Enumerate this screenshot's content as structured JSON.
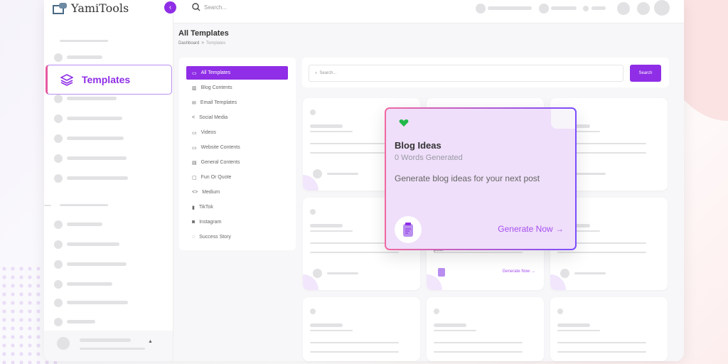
{
  "app": {
    "logo": "YamiTools",
    "search_placeholder": "Search..."
  },
  "sidebar": {
    "active_item": "Templates"
  },
  "page": {
    "title": "All Templates",
    "breadcrumb": [
      "Dashboard",
      "Templates"
    ],
    "breadcrumb_sep": ">"
  },
  "categories": [
    "All Templates",
    "Blog Contents",
    "Email Templates",
    "Social Media",
    "Videos",
    "Website Contents",
    "General Contents",
    "Fun Or Quote",
    "Medium",
    "TikTok",
    "Instagram",
    "Success Story"
  ],
  "category_icons": [
    "tablet",
    "book",
    "mail",
    "share",
    "video",
    "monitor",
    "file",
    "calendar",
    "code",
    "tiktok",
    "instagram",
    "star"
  ],
  "templates_search": {
    "placeholder": "Search...",
    "button": "Search"
  },
  "featured_card": {
    "title": "Blog Ideas",
    "subtitle": "0 Words Generated",
    "description": "Generate blog ideas for your next post",
    "cta": "Generate Now →"
  },
  "bg_card": {
    "partial_text": "post",
    "cta": "Generate Now →"
  },
  "colors": {
    "accent": "#8f2ee6",
    "card_bg": "#efdffa",
    "heart": "#22b84a"
  }
}
